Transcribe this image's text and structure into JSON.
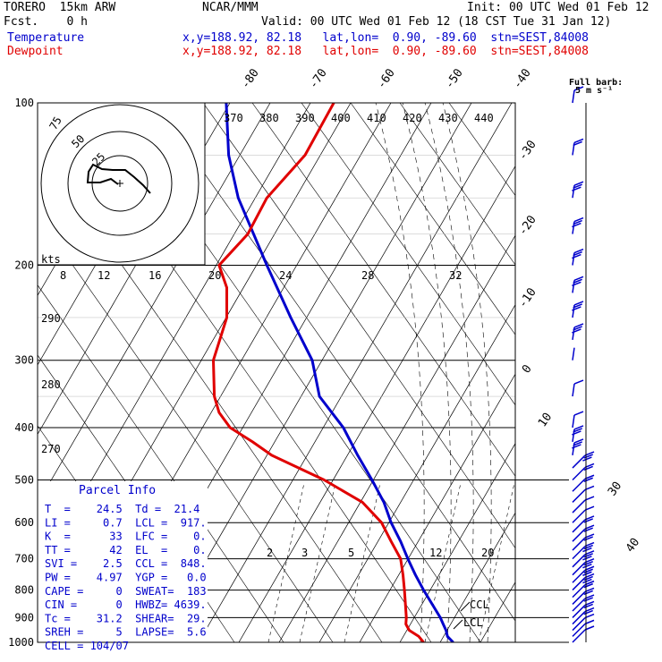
{
  "header": {
    "model": "TORERO  15km ARW",
    "forecast": "Fcst.    0 h",
    "center": "NCAR/MMM",
    "init": "Init: 00 UTC Wed 01 Feb 12",
    "valid": "Valid: 00 UTC Wed 01 Feb 12 (18 CST Tue 31 Jan 12)",
    "temp_legend": "Temperature",
    "dew_legend": "Dewpoint",
    "temp_info": "x,y=188.92, 82.18   lat,lon=  0.90, -89.60  stn=SEST,84008",
    "dew_info": "x,y=188.92, 82.18   lat,lon=  0.90, -89.60  stn=SEST,84008",
    "temp_color": "#0000cc",
    "dew_color": "#e00000"
  },
  "barb_legend": {
    "title": "Full barb:",
    "unit": "5 m s⁻¹"
  },
  "parcel": {
    "title": "Parcel Info",
    "rows": [
      "T  =    24.5  Td =  21.4",
      "LI =     0.7  LCL =  917.",
      "K  =      33  LFC =    0.",
      "TT =      42  EL  =    0.",
      "SVI =    2.5  CCL =  848.",
      "PW =    4.97  YGP =   0.0",
      "CAPE =     0  SWEAT=  183",
      "CIN =      0  HWBZ= 4639.",
      "Tc =    31.2  SHEAR=  29.",
      "SREH =     5  LAPSE=  5.6",
      "CELL = 104/07"
    ]
  },
  "hodograph": {
    "unit_label": "kts",
    "ring_labels": [
      "75",
      "50",
      "25"
    ],
    "speed_labels": [
      "8",
      "12",
      "16",
      "20",
      "24",
      "28",
      "32"
    ]
  },
  "level_markers": {
    "ccl": "CCL",
    "lcl": "LCL"
  },
  "chart_data": {
    "type": "line",
    "title": "",
    "y_scale": "log pressure (skew-T)",
    "ylabel": "",
    "pressure_ticks": [
      "100",
      "200",
      "300",
      "400",
      "500",
      "600",
      "700",
      "800",
      "900",
      "1000"
    ],
    "isotherm_labels": [
      "-80",
      "-70",
      "-60",
      "-50",
      "-40",
      "-30",
      "-20",
      "-10",
      "0",
      "10",
      "30",
      "40"
    ],
    "theta_labels": [
      "370",
      "380",
      "390",
      "400",
      "410",
      "420",
      "430",
      "440",
      "290",
      "280",
      "270"
    ],
    "mixing_ratio_labels": [
      "2",
      "3",
      "5",
      "12",
      "20"
    ],
    "ylim": [
      1000,
      100
    ],
    "series": [
      {
        "name": "Temperature",
        "color": "#0000cc",
        "pressure": [
          1000,
          975,
          950,
          925,
          900,
          850,
          800,
          750,
          700,
          650,
          600,
          550,
          500,
          450,
          400,
          350,
          300,
          250,
          200,
          150,
          125,
          100
        ],
        "x_frac": [
          0.87,
          0.858,
          0.855,
          0.849,
          0.843,
          0.826,
          0.808,
          0.791,
          0.775,
          0.76,
          0.74,
          0.725,
          0.7,
          0.67,
          0.64,
          0.59,
          0.575,
          0.53,
          0.48,
          0.42,
          0.4,
          0.395
        ]
      },
      {
        "name": "Dewpoint",
        "color": "#e00000",
        "pressure": [
          1000,
          975,
          950,
          925,
          900,
          850,
          800,
          750,
          700,
          650,
          600,
          550,
          500,
          450,
          425,
          400,
          375,
          350,
          300,
          250,
          220,
          200,
          175,
          150,
          125,
          100
        ],
        "x_frac": [
          0.808,
          0.798,
          0.778,
          0.771,
          0.772,
          0.77,
          0.768,
          0.765,
          0.76,
          0.74,
          0.72,
          0.68,
          0.6,
          0.49,
          0.45,
          0.403,
          0.38,
          0.37,
          0.368,
          0.396,
          0.396,
          0.38,
          0.44,
          0.48,
          0.56,
          0.62
        ]
      }
    ],
    "wind_profile": {
      "pressure": [
        1000,
        975,
        950,
        925,
        900,
        875,
        850,
        825,
        800,
        775,
        750,
        725,
        700,
        675,
        650,
        625,
        600,
        575,
        550,
        525,
        500,
        475,
        450,
        425,
        400,
        350,
        300,
        275,
        250,
        225,
        200,
        175,
        150,
        125,
        100
      ],
      "barb_count": [
        1,
        1,
        1,
        2,
        2,
        2,
        2,
        2,
        3,
        3,
        3,
        3,
        3,
        2,
        2,
        2,
        1,
        1,
        1,
        2,
        2,
        3,
        3,
        3,
        1,
        1,
        0,
        3,
        3,
        3,
        3,
        3,
        3,
        2,
        1
      ]
    }
  }
}
